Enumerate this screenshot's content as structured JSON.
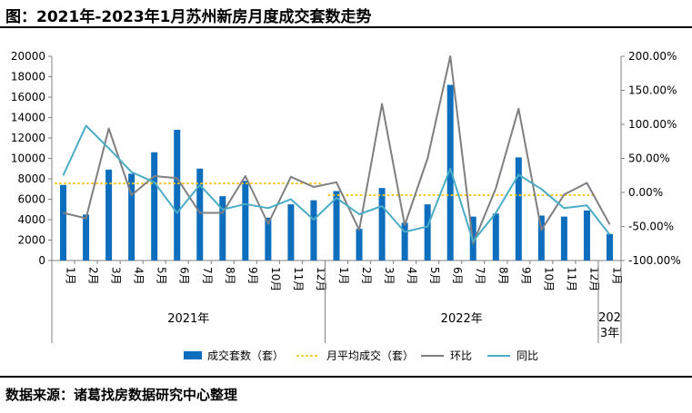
{
  "title": "图：2021年-2023年1月苏州新房月度成交套数走势",
  "source": "数据来源：诸葛找房数据研究中心整理",
  "colors": {
    "bar": "#0E6EBE",
    "avg": "#F5C518",
    "mom": "#7F7F7F",
    "yoy": "#4BACC6"
  },
  "chart_data": {
    "type": "bar",
    "categories": [
      "1月",
      "2月",
      "3月",
      "4月",
      "5月",
      "6月",
      "7月",
      "8月",
      "9月",
      "10月",
      "11月",
      "12月",
      "1月",
      "2月",
      "3月",
      "4月",
      "5月",
      "6月",
      "7月",
      "8月",
      "9月",
      "10月",
      "11月",
      "12月",
      "1月"
    ],
    "years": [
      {
        "label": "2021年",
        "start": 0,
        "end": 11
      },
      {
        "label": "2022年",
        "start": 12,
        "end": 23
      },
      {
        "label": "2023年",
        "start": 24,
        "end": 24
      }
    ],
    "y_left": {
      "min": 0,
      "max": 20000,
      "step": 2000,
      "ticks": [
        "0",
        "2000",
        "4000",
        "6000",
        "8000",
        "10000",
        "12000",
        "14000",
        "16000",
        "18000",
        "20000"
      ]
    },
    "y_right": {
      "min": -100,
      "max": 200,
      "step": 50,
      "ticks": [
        "-100.00%",
        "-50.00%",
        "0.00%",
        "50.00%",
        "100.00%",
        "150.00%",
        "200.00%"
      ]
    },
    "series": [
      {
        "name": "成交套数（套）",
        "type": "bar",
        "axis": "left",
        "values": [
          7400,
          4500,
          8900,
          8500,
          10600,
          12800,
          9000,
          6300,
          7800,
          4200,
          5500,
          5900,
          6800,
          3100,
          7100,
          3700,
          5500,
          17200,
          4300,
          4600,
          10100,
          4400,
          4300,
          4900,
          2600
        ]
      },
      {
        "name": "月平均成交（套）",
        "type": "line",
        "axis": "left",
        "style": "dotted",
        "values": [
          7550,
          7550,
          7550,
          7550,
          7550,
          7550,
          7550,
          7550,
          7550,
          7550,
          7550,
          7550,
          6400,
          6400,
          6400,
          6400,
          6400,
          6400,
          6400,
          6400,
          6400,
          6400,
          6400,
          6400,
          null
        ]
      },
      {
        "name": "环比",
        "type": "line",
        "axis": "right",
        "values": [
          -30,
          -38,
          94,
          -4,
          24,
          21,
          -30,
          -30,
          24,
          -46,
          23,
          8,
          15,
          -55,
          130,
          -48,
          50,
          210,
          -75,
          6,
          123,
          -55,
          -3,
          14,
          -47
        ]
      },
      {
        "name": "同比",
        "type": "line",
        "axis": "right",
        "values": [
          25,
          98,
          65,
          30,
          15,
          -30,
          11,
          -25,
          -17,
          -23,
          -10,
          -40,
          -8,
          -32,
          -20,
          -58,
          -50,
          35,
          -72,
          -30,
          26,
          5,
          -23,
          -19,
          -62
        ]
      }
    ],
    "legend_position": "bottom",
    "grid": false
  }
}
